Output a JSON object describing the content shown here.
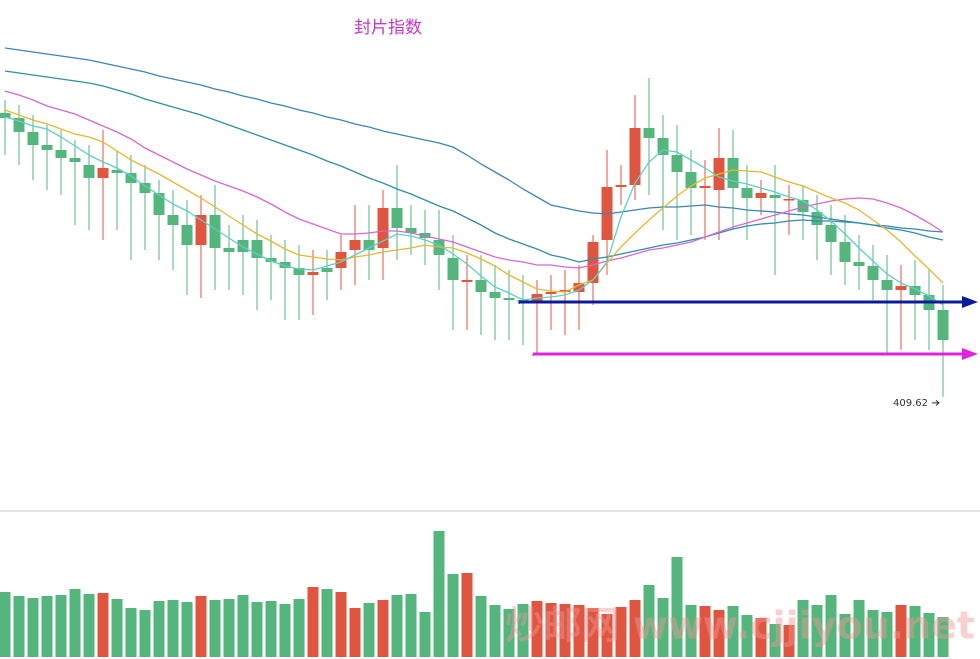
{
  "chart_data": {
    "type": "candlestick",
    "title": "封片指数",
    "watermark": "炒邮网 www.cjjiyou.net",
    "ylim": [
      387,
      489
    ],
    "vlim": [
      0,
      150
    ],
    "up_color": "#e0553f",
    "down_color": "#55b67d",
    "open": [
      466.4,
      465.4,
      462.6,
      460,
      459,
      457.4,
      456,
      453.4,
      455,
      454.4,
      452.4,
      450.4,
      446,
      444,
      440,
      446,
      439.4,
      441,
      441,
      437.4,
      436.6,
      435.4,
      434,
      435.4,
      435.4,
      439,
      441,
      439.4,
      447.4,
      443.4,
      442.4,
      441,
      437.4,
      432.6,
      433,
      430.6,
      429.4,
      429,
      428.6,
      430.2,
      430.6,
      430.6,
      432.4,
      441,
      451.6,
      452,
      463.4,
      461.4,
      458,
      454.6,
      451.4,
      451,
      457.4,
      451.4,
      449.4,
      450,
      449,
      449,
      446.6,
      444,
      440.6,
      436.6,
      435.8,
      433,
      431,
      431.8,
      430,
      427
    ],
    "close": [
      465.4,
      462.6,
      460,
      459,
      457.4,
      456.6,
      453.4,
      455.4,
      454.4,
      452.4,
      450.4,
      446,
      444,
      440,
      446,
      439.4,
      438.6,
      438.6,
      437.4,
      436.6,
      435.4,
      434,
      434.6,
      434.6,
      438.6,
      441,
      439,
      447.4,
      443.4,
      442.4,
      441.4,
      438,
      433,
      433,
      430.6,
      429.4,
      429,
      428.6,
      430.2,
      430.6,
      431,
      432.4,
      440.6,
      451.6,
      452,
      463.4,
      461.4,
      458,
      454.6,
      451.4,
      451.8,
      457.4,
      451.4,
      449.4,
      450.4,
      449.4,
      449.2,
      446.6,
      444,
      440.6,
      436.6,
      435.8,
      433,
      431,
      431.8,
      430,
      427,
      421
    ],
    "high": [
      469,
      468,
      466,
      464,
      463,
      461,
      460,
      463,
      459,
      458,
      456,
      453,
      451,
      449,
      450,
      452,
      444,
      446,
      445,
      442,
      441,
      440,
      439,
      439,
      442,
      448,
      448,
      451,
      456,
      448,
      447,
      447,
      442,
      438,
      438,
      436,
      435,
      434,
      433,
      434,
      435,
      436,
      442,
      459,
      456,
      470,
      473.4,
      466,
      464,
      459,
      457,
      463.4,
      463,
      456,
      453,
      456,
      452,
      452,
      450,
      448,
      446,
      442,
      440,
      438,
      436,
      437,
      435,
      432
    ],
    "low": [
      458,
      456,
      453,
      451,
      450,
      444,
      443,
      441,
      443,
      437,
      439,
      437,
      435,
      430,
      429.4,
      431,
      431,
      430,
      427,
      429,
      425,
      425,
      426,
      429,
      431,
      432,
      433,
      433,
      437,
      438,
      436,
      431,
      423,
      423,
      422,
      421,
      421,
      420,
      418,
      423,
      422,
      423,
      428,
      434,
      448,
      449,
      450,
      443,
      441,
      442,
      441,
      441,
      443,
      441,
      446,
      434,
      442,
      441,
      437,
      434,
      432,
      431,
      429,
      418,
      419,
      421,
      419,
      409.62
    ],
    "volume": [
      65,
      61,
      59,
      61,
      62,
      68,
      63,
      64,
      58,
      49,
      47,
      56,
      57,
      55,
      61,
      57,
      58,
      62,
      55,
      56,
      53,
      58,
      70,
      68,
      65,
      49,
      54,
      57,
      62,
      63,
      45,
      126,
      83,
      84,
      61,
      52,
      48,
      53,
      56,
      54,
      53,
      52,
      49,
      43,
      50,
      57,
      72,
      59,
      100,
      52,
      51,
      47,
      51,
      42,
      39,
      33,
      32,
      57,
      52,
      62,
      43,
      57,
      47,
      45,
      52,
      51,
      44,
      40
    ],
    "series": [
      {
        "color": "#3d84b8",
        "values": [
          479.4,
          479,
          478.6,
          478.2,
          477.8,
          477.4,
          477,
          476.4,
          475.8,
          475.2,
          474.6,
          473.8,
          473.2,
          472.6,
          472,
          471.2,
          470.6,
          469.8,
          469.2,
          468.4,
          467.8,
          467,
          466.4,
          465.6,
          465,
          464.2,
          463.6,
          462.8,
          462.2,
          461.6,
          461,
          460.4,
          459.6,
          458,
          456.2,
          454.6,
          453,
          451.2,
          449.6,
          448,
          447.4,
          446.8,
          446.4,
          446.2,
          446.6,
          447,
          447.4,
          447.6,
          447.6,
          447.8,
          448,
          447.6,
          447.4,
          447,
          446.8,
          446.6,
          446.2,
          446,
          445.6,
          445.2,
          444.8,
          444.4,
          444,
          443.8,
          443.4,
          443.2,
          442.8,
          442.6
        ]
      },
      {
        "color": "#2f8ea8",
        "values": [
          474.8,
          474.4,
          474,
          473.6,
          473.2,
          472.8,
          472.4,
          471.8,
          471,
          470.2,
          469.2,
          468.4,
          467.6,
          466.8,
          466,
          465,
          464,
          463,
          462,
          461,
          460,
          459,
          458,
          456.8,
          455.8,
          454.6,
          453.4,
          452.4,
          451.2,
          450.2,
          449,
          447.8,
          446.8,
          445.4,
          444,
          442.4,
          441.2,
          440.2,
          439.2,
          438,
          437.4,
          436.6,
          437.2,
          437.6,
          438.2,
          438.8,
          439.4,
          440,
          440.4,
          441,
          441.6,
          442.4,
          443.2,
          443.8,
          444.2,
          444.4,
          444.8,
          445,
          444.8,
          444.8,
          444.6,
          444.4,
          444,
          443.4,
          443,
          442.4,
          441.6,
          441
        ]
      },
      {
        "color": "#d768cf",
        "values": [
          470.8,
          470,
          469,
          467.8,
          467,
          466.2,
          465,
          463.8,
          462.6,
          461.2,
          459.4,
          458,
          456.6,
          455.2,
          454,
          452.8,
          451.8,
          450.8,
          449.6,
          448.2,
          446.6,
          445.2,
          444.2,
          443.2,
          442.2,
          442.2,
          442.4,
          442.8,
          442.8,
          442.4,
          441.8,
          441.2,
          440.6,
          439.6,
          438.6,
          437.6,
          437,
          436.6,
          436,
          436,
          435.6,
          435.4,
          436,
          436.8,
          437.4,
          438.2,
          439,
          439.4,
          440,
          440.6,
          441.6,
          442.6,
          443.6,
          444.4,
          445.2,
          446,
          446.8,
          447.6,
          448.2,
          448.8,
          449.2,
          449.4,
          449.2,
          448.4,
          447.4,
          446,
          444.4,
          442.6
        ]
      },
      {
        "color": "#e8b72f",
        "values": [
          467,
          466,
          465,
          464.2,
          463.2,
          462.2,
          461.6,
          460.6,
          458.8,
          457,
          455.6,
          454.2,
          452.6,
          451,
          449.4,
          447.6,
          445.8,
          444,
          442.2,
          440.8,
          439.2,
          438,
          437.6,
          437.2,
          437,
          437.6,
          438,
          438.6,
          439,
          439.4,
          440,
          439.6,
          439.4,
          438.4,
          437.2,
          435.8,
          434,
          432.6,
          431.2,
          430.8,
          430.6,
          432,
          433,
          436.4,
          439.6,
          442.4,
          445,
          447.4,
          449.8,
          451.8,
          453.4,
          454.2,
          455,
          454.8,
          454.6,
          453.6,
          452.6,
          451.8,
          450.6,
          449.4,
          448.4,
          447,
          445,
          443,
          440.6,
          437.8,
          435.2,
          432.4
        ]
      },
      {
        "color": "#5ecfc6",
        "values": [
          465.6,
          464.8,
          463.8,
          463.2,
          461.6,
          459.8,
          458,
          456.6,
          455.4,
          453.8,
          451.8,
          450,
          448.2,
          446.8,
          445,
          443.2,
          441.4,
          439.6,
          438.2,
          436.8,
          435.8,
          435.2,
          435,
          435.8,
          436.6,
          438,
          439.4,
          440.8,
          442.2,
          441.8,
          441,
          440,
          438.2,
          436.2,
          433.8,
          431.6,
          430.4,
          429,
          429.4,
          429.6,
          430,
          431,
          433,
          436.6,
          445.6,
          452.4,
          456.6,
          459,
          458.6,
          457,
          455.4,
          453.6,
          452.8,
          452.2,
          451.4,
          450.6,
          449.6,
          448.8,
          447,
          444.8,
          442.2,
          439.4,
          436.8,
          434.2,
          432.4,
          431.2,
          429.8,
          428
        ]
      }
    ],
    "hlines": [
      {
        "value": 428.6,
        "start": 37,
        "color": "#0a1a9e"
      },
      {
        "value": 418.2,
        "start": 38,
        "color": "#e022e0"
      }
    ]
  }
}
